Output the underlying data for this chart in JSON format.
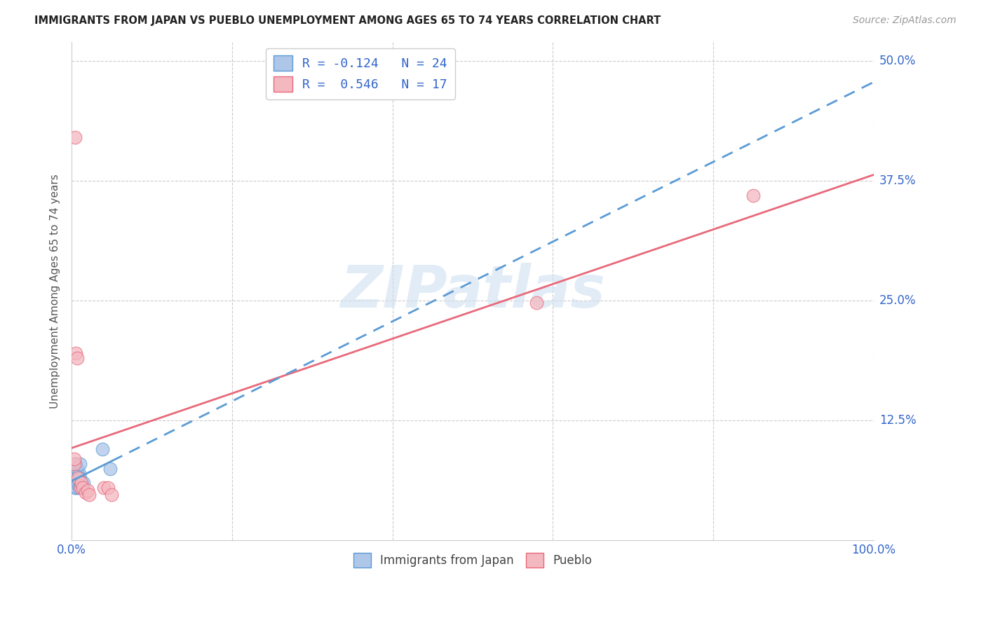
{
  "title": "IMMIGRANTS FROM JAPAN VS PUEBLO UNEMPLOYMENT AMONG AGES 65 TO 74 YEARS CORRELATION CHART",
  "source": "Source: ZipAtlas.com",
  "ylabel": "Unemployment Among Ages 65 to 74 years",
  "xlim": [
    0,
    1.0
  ],
  "ylim": [
    0.0,
    0.52
  ],
  "xtick_positions": [
    0.0,
    0.2,
    0.4,
    0.6,
    0.8,
    1.0
  ],
  "xtick_labels": [
    "0.0%",
    "",
    "",
    "",
    "",
    "100.0%"
  ],
  "ytick_positions": [
    0.0,
    0.125,
    0.25,
    0.375,
    0.5
  ],
  "ytick_labels": [
    "",
    "12.5%",
    "25.0%",
    "37.5%",
    "50.0%"
  ],
  "blue_scatter_x": [
    0.002,
    0.003,
    0.003,
    0.004,
    0.004,
    0.005,
    0.005,
    0.005,
    0.006,
    0.006,
    0.007,
    0.007,
    0.008,
    0.008,
    0.009,
    0.009,
    0.01,
    0.01,
    0.011,
    0.012,
    0.013,
    0.015,
    0.038,
    0.048
  ],
  "blue_scatter_y": [
    0.065,
    0.07,
    0.065,
    0.055,
    0.06,
    0.065,
    0.075,
    0.08,
    0.06,
    0.055,
    0.07,
    0.075,
    0.06,
    0.065,
    0.055,
    0.07,
    0.065,
    0.08,
    0.06,
    0.058,
    0.055,
    0.06,
    0.095,
    0.075
  ],
  "pink_scatter_x": [
    0.003,
    0.003,
    0.004,
    0.005,
    0.007,
    0.008,
    0.011,
    0.012,
    0.014,
    0.017,
    0.02,
    0.022,
    0.04,
    0.045,
    0.05,
    0.58,
    0.85
  ],
  "pink_scatter_y": [
    0.08,
    0.085,
    0.42,
    0.195,
    0.19,
    0.065,
    0.055,
    0.06,
    0.055,
    0.05,
    0.052,
    0.048,
    0.055,
    0.055,
    0.048,
    0.248,
    0.36
  ],
  "blue_R": -0.124,
  "blue_N": 24,
  "pink_R": 0.546,
  "pink_N": 17,
  "blue_line_color": "#5b9bd5",
  "pink_line_color": "#e8697a",
  "blue_scatter_color": "#aec6e8",
  "pink_scatter_color": "#f4b8c1",
  "pink_scatter_edge": "#e8697a",
  "blue_scatter_edge": "#5b9bd5",
  "watermark_text": "ZIPatlas",
  "watermark_color": "#cfe0f0",
  "background_color": "#ffffff",
  "grid_color": "#cccccc",
  "legend_blue_label": "R = -0.124   N = 24",
  "legend_pink_label": "R =  0.546   N = 17",
  "bottom_legend_blue": "Immigrants from Japan",
  "bottom_legend_pink": "Pueblo",
  "title_color": "#222222",
  "source_color": "#999999",
  "axis_label_color": "#555555",
  "tick_label_color": "#3366cc",
  "ylabel_color": "#555555"
}
